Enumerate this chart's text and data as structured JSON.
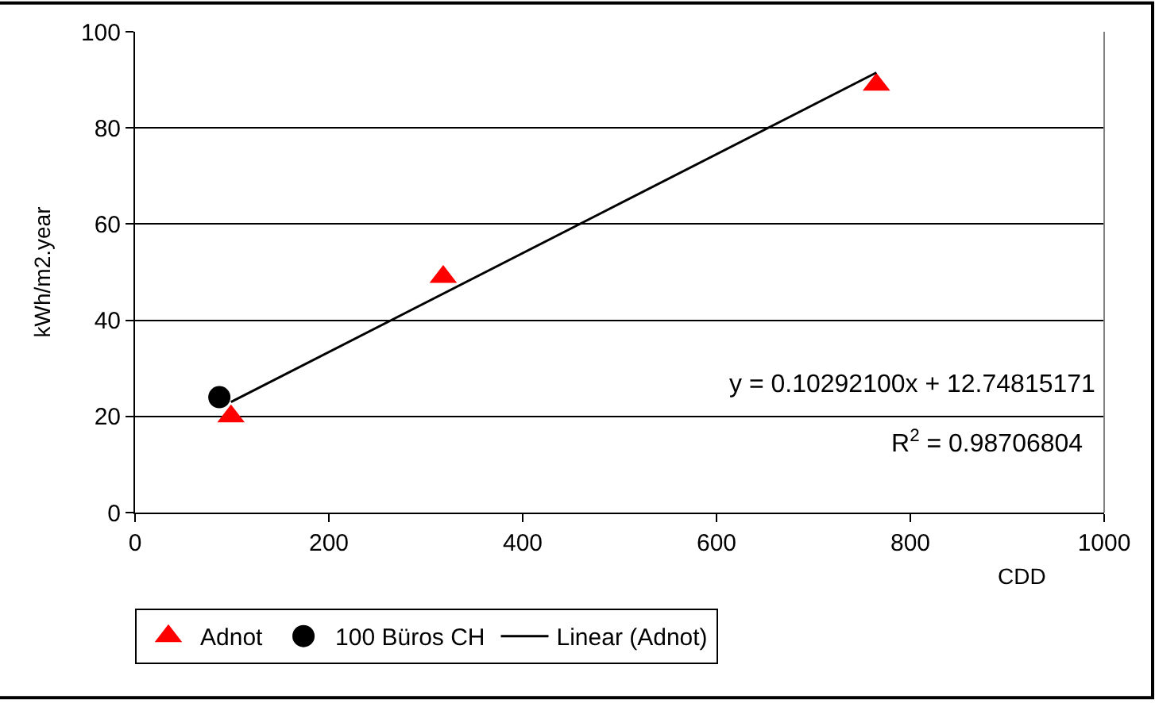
{
  "chart_data": {
    "type": "scatter",
    "xlabel": "CDD",
    "ylabel": "kWh/m2.year",
    "xlim": [
      0,
      1000
    ],
    "xticks": [
      0,
      200,
      400,
      600,
      800,
      1000
    ],
    "ylim": [
      0,
      100
    ],
    "yticks": [
      0,
      20,
      40,
      60,
      80,
      100
    ],
    "grid": "y",
    "legend": "bottom",
    "series": [
      {
        "name": "Adnot",
        "marker": "triangle",
        "color": "#ff0000",
        "x": [
          99,
          318,
          765
        ],
        "values": [
          20,
          49,
          89
        ]
      },
      {
        "name": "100 Büros CH",
        "marker": "circle",
        "color": "#000000",
        "x": [
          87
        ],
        "values": [
          24
        ]
      },
      {
        "name": "Linear (Adnot)",
        "type": "line",
        "marker": "none",
        "line_style": "solid",
        "color": "#000000",
        "x": [
          99,
          765
        ],
        "values": [
          23,
          91.5
        ]
      }
    ],
    "annotations": [
      "y = 0.10292100x + 12.74815171",
      "R$^{2}$ = 0.98706804"
    ]
  }
}
